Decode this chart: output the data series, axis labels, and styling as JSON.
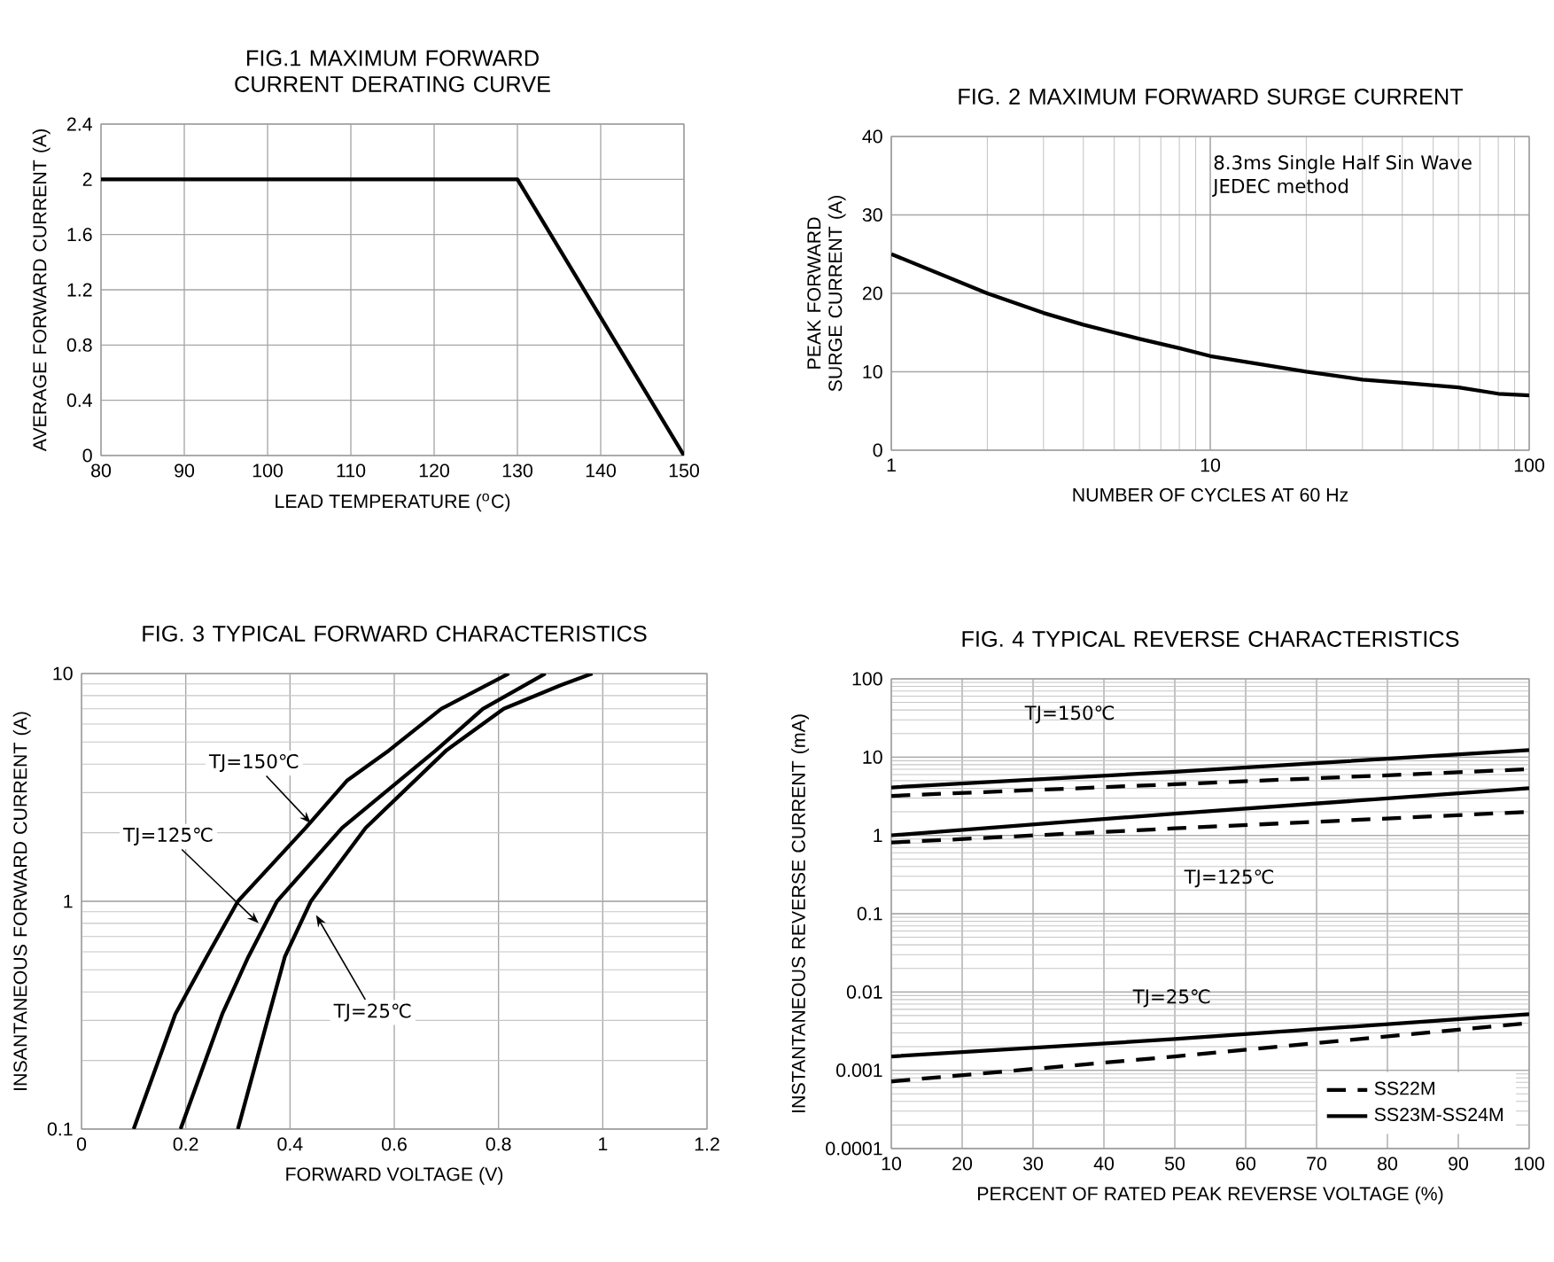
{
  "chart_data": [
    {
      "type": "line",
      "title": "FIG.1 MAXIMUM FORWARD CURRENT DERATING CURVE",
      "xlabel": "LEAD TEMPERATURE ($^{o}$C)",
      "ylabel": "AVERAGE FORWARD CURRENT (A)",
      "xlim": [
        80,
        150
      ],
      "xticks": [
        80,
        90,
        100,
        110,
        120,
        130,
        140,
        150
      ],
      "ylim": [
        0,
        2.4
      ],
      "yticks": [
        0,
        0.4,
        0.8,
        1.2,
        1.6,
        2,
        2.4
      ],
      "grid": true,
      "series": [
        {
          "color": "#000000",
          "x": [
            80,
            130,
            150
          ],
          "values": [
            2,
            2,
            0
          ]
        }
      ]
    },
    {
      "type": "line",
      "title": "FIG. 2 MAXIMUM FORWARD SURGE CURRENT",
      "xlabel": "NUMBER OF CYCLES AT 60 Hz",
      "ylabel": "PEAK FORWARD SURGE CURRENT (A)",
      "log": "x",
      "xlim": [
        1,
        100
      ],
      "xticks": [
        1,
        10,
        100
      ],
      "ylim": [
        0,
        40
      ],
      "yticks": [
        0,
        10,
        20,
        30,
        40
      ],
      "grid": true,
      "annotations": [
        "8.3ms Single Half Sin Wave",
        "JEDEC method"
      ],
      "series": [
        {
          "color": "#000000",
          "x": [
            1,
            2,
            3,
            4,
            5,
            6,
            8,
            10,
            20,
            30,
            40,
            60,
            80,
            100
          ],
          "values": [
            25,
            20,
            17.5,
            16,
            15,
            14.2,
            13,
            12,
            10,
            9,
            8.6,
            8,
            7.2,
            7
          ]
        }
      ]
    },
    {
      "type": "line",
      "title": "FIG. 3 TYPICAL FORWARD CHARACTERISTICS",
      "xlabel": "FORWARD VOLTAGE (V)",
      "ylabel": "INSANTANEOUS FORWARD CURRENT (A)",
      "log": "y",
      "xlim": [
        0,
        1.2
      ],
      "xticks": [
        0,
        0.2,
        0.4,
        0.6,
        0.8,
        1,
        1.2
      ],
      "ylim": [
        0.1,
        10
      ],
      "yticks": [
        0.1,
        1,
        10
      ],
      "grid": true,
      "annotations": [
        {
          "text": "TJ=150℃",
          "x": 0.44,
          "y": 2.2
        },
        {
          "text": "TJ=125℃",
          "x": 0.34,
          "y": 0.8
        },
        {
          "text": "TJ=25℃",
          "x": 0.45,
          "y": 0.87
        }
      ],
      "series": [
        {
          "color": "#000000",
          "x": [
            0.1,
            0.18,
            0.24,
            0.3,
            0.43,
            0.51,
            0.59,
            0.69,
            0.82
          ],
          "values": [
            0.1,
            0.32,
            0.57,
            1,
            2.1,
            3.4,
            4.6,
            7,
            10
          ]
        },
        {
          "color": "#000000",
          "x": [
            0.19,
            0.27,
            0.32,
            0.375,
            0.5,
            0.68,
            0.77,
            0.89
          ],
          "values": [
            0.1,
            0.32,
            0.57,
            1,
            2.1,
            4.6,
            7,
            10
          ]
        },
        {
          "color": "#000000",
          "x": [
            0.3,
            0.36,
            0.39,
            0.44,
            0.545,
            0.7,
            0.81,
            0.92,
            0.98
          ],
          "values": [
            0.1,
            0.32,
            0.57,
            1,
            2.1,
            4.6,
            7,
            8.9,
            10
          ]
        }
      ]
    },
    {
      "type": "line",
      "title": "FIG. 4 TYPICAL REVERSE CHARACTERISTICS",
      "xlabel": "PERCENT OF RATED PEAK REVERSE VOLTAGE (%)",
      "ylabel": "INSTANTANEOUS REVERSE CURRENT (mA)",
      "log": "y",
      "xlim": [
        10,
        100
      ],
      "xticks": [
        10,
        20,
        30,
        40,
        50,
        60,
        70,
        80,
        90,
        100
      ],
      "ylim": [
        0.0001,
        100
      ],
      "yticks": [
        0.0001,
        0.001,
        0.01,
        0.1,
        1,
        10,
        100
      ],
      "grid": true,
      "legend": "bottom right",
      "annotations": [
        "TJ=150℃",
        "TJ=125℃",
        "TJ=25℃"
      ],
      "series": [
        {
          "name": "SS22M",
          "color": "#000000",
          "line_style": "dashed",
          "x": [
            10,
            50,
            100
          ],
          "values": [
            3.2,
            4.5,
            7
          ]
        },
        {
          "name": "SS23M-SS24M",
          "color": "#000000",
          "line_style": "solid",
          "x": [
            10,
            50,
            100
          ],
          "values": [
            4.1,
            6.5,
            12.3
          ]
        },
        {
          "color": "#000000",
          "line_style": "solid",
          "x": [
            10,
            50,
            100
          ],
          "values": [
            1,
            1.9,
            4
          ]
        },
        {
          "color": "#000000",
          "line_style": "dashed",
          "x": [
            10,
            50,
            100
          ],
          "values": [
            0.81,
            1.23,
            2
          ]
        },
        {
          "color": "#000000",
          "line_style": "solid",
          "x": [
            10,
            50,
            100
          ],
          "values": [
            0.0015,
            0.0025,
            0.0052
          ]
        },
        {
          "color": "#000000",
          "line_style": "dashed",
          "x": [
            10,
            50,
            100
          ],
          "values": [
            0.00072,
            0.0015,
            0.004
          ]
        }
      ]
    }
  ]
}
